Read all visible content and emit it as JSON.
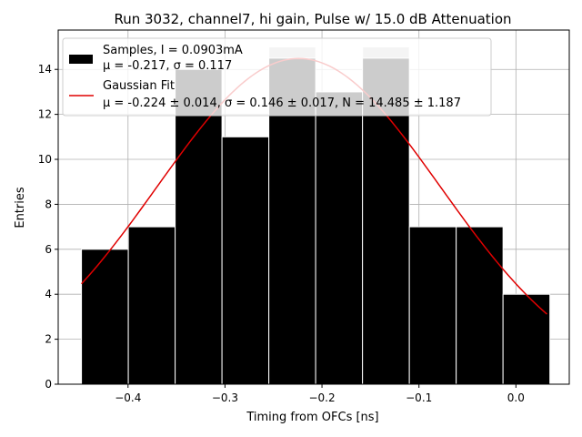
{
  "chart_data": {
    "type": "bar",
    "title": "Run 3032, channel7, hi gain, Pulse w/ 15.0 dB Attenuation",
    "xlabel": "Timing from OFCs [ns]",
    "ylabel": "Entries",
    "xlim": [
      -0.472,
      0.055
    ],
    "ylim": [
      0,
      15.75
    ],
    "x_ticks": [
      -0.4,
      -0.3,
      -0.2,
      -0.1,
      0.0
    ],
    "x_tick_labels": [
      "−0.4",
      "−0.3",
      "−0.2",
      "−0.1",
      "0.0"
    ],
    "y_ticks": [
      0,
      2,
      4,
      6,
      8,
      10,
      12,
      14
    ],
    "y_tick_labels": [
      "0",
      "2",
      "4",
      "6",
      "8",
      "10",
      "12",
      "14"
    ],
    "grid": true,
    "legend_position": "top-left",
    "histogram": {
      "name": "Samples, I = 0.0903mA",
      "stats_label": "μ = -0.217, σ = 0.117",
      "color": "#000000",
      "bin_edges": [
        -0.448,
        -0.3997,
        -0.3514,
        -0.3031,
        -0.2548,
        -0.2065,
        -0.1582,
        -0.1099,
        -0.0616,
        -0.0133,
        0.035
      ],
      "counts": [
        6,
        7,
        14,
        11,
        15,
        13,
        15,
        7,
        7,
        4
      ],
      "outline_counts": [
        6,
        7,
        14,
        11,
        15,
        13,
        15,
        7,
        7,
        4
      ],
      "visible_black_counts": [
        6,
        7,
        14,
        11,
        14.5,
        13,
        14.5,
        7,
        7,
        4
      ]
    },
    "fit": {
      "name": "Gaussian Fit",
      "params_label": "μ = -0.224 ± 0.014, σ = 0.146 ± 0.017, N = 14.485 ± 1.187",
      "mu": -0.224,
      "sigma": 0.146,
      "N": 14.485,
      "x_range": [
        -0.448,
        0.032
      ],
      "color": "#e00000"
    },
    "colors": {
      "grid": "#b0b0b0",
      "clipped_bar": "#c8c8c8",
      "edge": "#ffffff"
    }
  }
}
